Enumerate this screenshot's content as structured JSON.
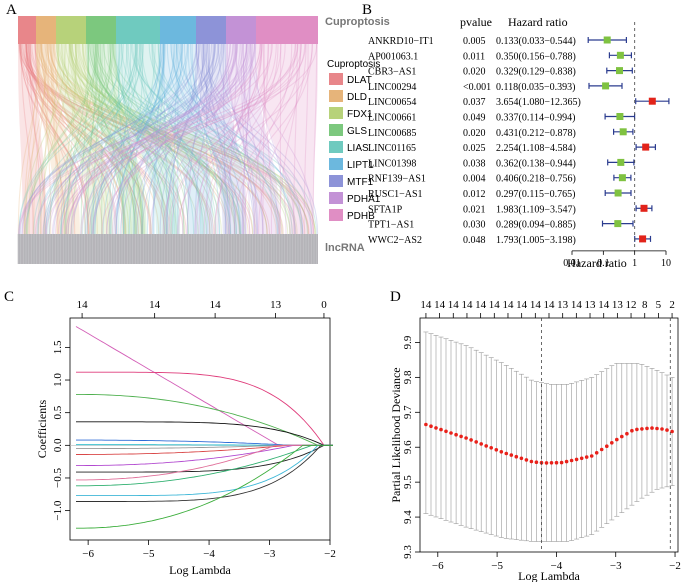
{
  "panels": {
    "a": "A",
    "b": "B",
    "c": "C",
    "d": "D"
  },
  "colors": {
    "DLAT": "#e8868a",
    "DLD": "#e6b47a",
    "FDX1": "#b7d27a",
    "GLS": "#7cc87e",
    "LIAS": "#6fcabf",
    "LIPT1": "#6cb8de",
    "MTF1": "#8d93d8",
    "PDHA1": "#c392d6",
    "PDHB": "#e08ec4",
    "green_marker": "#7fc241",
    "red_marker": "#e2231a",
    "ci_blue": "#2b3c8f",
    "cv_red": "#e8211a"
  },
  "sankey": {
    "top_label": "Cuproptosis",
    "bottom_label": "lncRNA",
    "legend_title": "Cuproptosis",
    "legend": [
      "DLAT",
      "DLD",
      "FDX1",
      "GLS",
      "LIAS",
      "LIPT1",
      "MTF1",
      "PDHA1",
      "PDHB"
    ]
  },
  "chart_data": [
    {
      "type": "forest",
      "panel": "B",
      "col_pvalue": "pvalue",
      "col_hr": "Hazard ratio",
      "xlabel": "Hazard ratio",
      "xscale": "log",
      "xticks": [
        "0.01",
        "0.1",
        "1",
        "10"
      ],
      "xtick_values": [
        0.01,
        0.1,
        1,
        10
      ],
      "rows": [
        {
          "gene": "ANKRD10−IT1",
          "p": "0.005",
          "text": "0.133(0.033−0.544)",
          "hr": 0.133,
          "lo": 0.033,
          "hi": 0.544
        },
        {
          "gene": "AP001063.1",
          "p": "0.011",
          "text": "0.350(0.156−0.788)",
          "hr": 0.35,
          "lo": 0.156,
          "hi": 0.788
        },
        {
          "gene": "CBR3−AS1",
          "p": "0.020",
          "text": "0.329(0.129−0.838)",
          "hr": 0.329,
          "lo": 0.129,
          "hi": 0.838
        },
        {
          "gene": "LINC00294",
          "p": "<0.001",
          "text": "0.118(0.035−0.393)",
          "hr": 0.118,
          "lo": 0.035,
          "hi": 0.393
        },
        {
          "gene": "LINC00654",
          "p": "0.037",
          "text": "3.654(1.080−12.365)",
          "hr": 3.654,
          "lo": 1.08,
          "hi": 12.365
        },
        {
          "gene": "LINC00661",
          "p": "0.049",
          "text": "0.337(0.114−0.994)",
          "hr": 0.337,
          "lo": 0.114,
          "hi": 0.994
        },
        {
          "gene": "LINC00685",
          "p": "0.020",
          "text": "0.431(0.212−0.878)",
          "hr": 0.431,
          "lo": 0.212,
          "hi": 0.878
        },
        {
          "gene": "LINC01165",
          "p": "0.025",
          "text": "2.254(1.108−4.584)",
          "hr": 2.254,
          "lo": 1.108,
          "hi": 4.584
        },
        {
          "gene": "LINC01398",
          "p": "0.038",
          "text": "0.362(0.138−0.944)",
          "hr": 0.362,
          "lo": 0.138,
          "hi": 0.944
        },
        {
          "gene": "RNF139−AS1",
          "p": "0.004",
          "text": "0.406(0.218−0.756)",
          "hr": 0.406,
          "lo": 0.218,
          "hi": 0.756
        },
        {
          "gene": "RUSC1−AS1",
          "p": "0.012",
          "text": "0.297(0.115−0.765)",
          "hr": 0.297,
          "lo": 0.115,
          "hi": 0.765
        },
        {
          "gene": "SFTA1P",
          "p": "0.021",
          "text": "1.983(1.109−3.547)",
          "hr": 1.983,
          "lo": 1.109,
          "hi": 3.547
        },
        {
          "gene": "TPT1−AS1",
          "p": "0.030",
          "text": "0.289(0.094−0.885)",
          "hr": 0.289,
          "lo": 0.094,
          "hi": 0.885
        },
        {
          "gene": "WWC2−AS2",
          "p": "0.048",
          "text": "1.793(1.005−3.198)",
          "hr": 1.793,
          "lo": 1.005,
          "hi": 3.198
        }
      ]
    },
    {
      "type": "line",
      "panel": "C",
      "title": "",
      "xlabel": "Log Lambda",
      "ylabel": "Coefficients",
      "xlim": [
        -6.3,
        -2.0
      ],
      "ylim": [
        -1.45,
        1.95
      ],
      "xticks": [
        -6,
        -5,
        -4,
        -3,
        -2
      ],
      "yticks": [
        -1.0,
        -0.5,
        0.0,
        0.5,
        1.0,
        1.5
      ],
      "ytick_labels": [
        "−1.0",
        "−0.5",
        "0.0",
        "0.5",
        "1.0",
        "1.5"
      ],
      "xtick_labels": [
        "−6",
        "−5",
        "−4",
        "−3",
        "−2"
      ],
      "top_axis_ticks": [
        -6.1,
        -4.9,
        -3.9,
        -2.9,
        -2.1
      ],
      "top_axis_labels": [
        "14",
        "14",
        "14",
        "13",
        "0"
      ],
      "series": [
        {
          "name": "p1",
          "color": "#d35fb7",
          "start": 1.82,
          "end_x": -2.85,
          "shape": "early"
        },
        {
          "name": "p2",
          "color": "#df3b7a",
          "start": 1.12,
          "end_x": -2.1,
          "shape": "late"
        },
        {
          "name": "p3",
          "color": "#4fb04f",
          "start": 0.78,
          "end_x": -2.2,
          "shape": "mid"
        },
        {
          "name": "p4",
          "color": "#111111",
          "start": 0.36,
          "end_x": -2.1,
          "shape": "late"
        },
        {
          "name": "p5",
          "color": "#2c6bd6",
          "start": 0.08,
          "end_x": -2.6,
          "shape": "mid"
        },
        {
          "name": "p6",
          "color": "#1fb8c8",
          "start": 0.01,
          "end_x": -2.8,
          "shape": "mid"
        },
        {
          "name": "p7",
          "color": "#9a9a9a",
          "start": -0.05,
          "end_x": -2.8,
          "shape": "mid"
        },
        {
          "name": "p8",
          "color": "#d94848",
          "start": -0.14,
          "end_x": -2.7,
          "shape": "mid"
        },
        {
          "name": "p9",
          "color": "#b24ad0",
          "start": -0.31,
          "end_x": -2.6,
          "shape": "mid"
        },
        {
          "name": "p10",
          "color": "#222222",
          "start": -0.41,
          "end_x": -2.1,
          "shape": "late"
        },
        {
          "name": "p11",
          "color": "#e0709a",
          "start": -0.53,
          "end_x": -2.9,
          "shape": "mid"
        },
        {
          "name": "p12",
          "color": "#30b070",
          "start": -0.62,
          "end_x": -2.3,
          "shape": "mid"
        },
        {
          "name": "p13",
          "color": "#40b8d8",
          "start": -0.77,
          "end_x": -2.2,
          "shape": "late"
        },
        {
          "name": "p14",
          "color": "#333333",
          "start": -0.86,
          "end_x": -2.15,
          "shape": "late"
        },
        {
          "name": "p15",
          "color": "#3cae3c",
          "start": -1.27,
          "end_x": -2.45,
          "shape": "mid"
        }
      ]
    },
    {
      "type": "scatter",
      "panel": "D",
      "title": "",
      "xlabel": "Log Lambda",
      "ylabel": "Partial Likelihood Deviance",
      "xlim": [
        -6.3,
        -1.95
      ],
      "ylim": [
        9.3,
        9.97
      ],
      "xticks": [
        -6,
        -5,
        -4,
        -3,
        -2
      ],
      "xtick_labels": [
        "−6",
        "−5",
        "−4",
        "−3",
        "−2"
      ],
      "yticks": [
        9.3,
        9.4,
        9.5,
        9.6,
        9.7,
        9.8,
        9.9
      ],
      "ytick_labels": [
        "9.3",
        "9.4",
        "9.5",
        "9.6",
        "9.7",
        "9.8",
        "9.9"
      ],
      "top_axis_labels": [
        "14",
        "14",
        "14",
        "14",
        "14",
        "14",
        "14",
        "14",
        "14",
        "14",
        "13",
        "14",
        "13",
        "14",
        "13",
        "12",
        "8",
        "5",
        "2"
      ],
      "vlines": [
        -4.25,
        -2.08
      ],
      "x_start": -6.2,
      "x_end": -2.05,
      "n_points": 50,
      "y_at": [
        [
          -6.2,
          9.665
        ],
        [
          -5.5,
          9.625
        ],
        [
          -4.9,
          9.585
        ],
        [
          -4.4,
          9.558
        ],
        [
          -4.2,
          9.555
        ],
        [
          -3.9,
          9.556
        ],
        [
          -3.4,
          9.575
        ],
        [
          -3.0,
          9.62
        ],
        [
          -2.7,
          9.65
        ],
        [
          -2.4,
          9.655
        ],
        [
          -2.2,
          9.652
        ],
        [
          -2.05,
          9.645
        ]
      ],
      "err_upper": [
        [
          -6.2,
          9.93
        ],
        [
          -5.5,
          9.89
        ],
        [
          -4.9,
          9.84
        ],
        [
          -4.4,
          9.79
        ],
        [
          -4.1,
          9.78
        ],
        [
          -3.8,
          9.78
        ],
        [
          -3.4,
          9.8
        ],
        [
          -3.0,
          9.84
        ],
        [
          -2.6,
          9.84
        ],
        [
          -2.3,
          9.82
        ],
        [
          -2.05,
          9.8
        ]
      ],
      "err_lower": [
        [
          -6.2,
          9.41
        ],
        [
          -5.5,
          9.37
        ],
        [
          -4.9,
          9.34
        ],
        [
          -4.4,
          9.33
        ],
        [
          -4.1,
          9.33
        ],
        [
          -3.8,
          9.33
        ],
        [
          -3.4,
          9.35
        ],
        [
          -3.0,
          9.4
        ],
        [
          -2.6,
          9.45
        ],
        [
          -2.3,
          9.48
        ],
        [
          -2.05,
          9.49
        ]
      ]
    }
  ]
}
